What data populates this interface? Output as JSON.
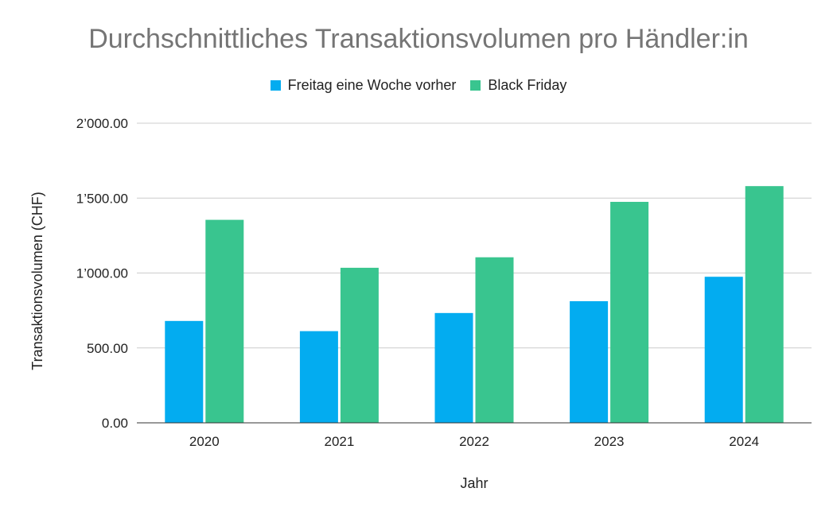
{
  "chart_data": {
    "type": "bar",
    "title": "Durchschnittliches Transaktionsvolumen pro Händler:in",
    "xlabel": "Jahr",
    "ylabel": "Transaktionsvolumen (CHF)",
    "categories": [
      "2020",
      "2021",
      "2022",
      "2023",
      "2024"
    ],
    "series": [
      {
        "name": "Freitag eine Woche vorher",
        "color": "#03acf0",
        "values": [
          680,
          612,
          733,
          812,
          975
        ]
      },
      {
        "name": "Black Friday",
        "color": "#39c58f",
        "values": [
          1355,
          1035,
          1105,
          1475,
          1580
        ]
      }
    ],
    "ylim": [
      0,
      2000
    ],
    "yticks": [
      0,
      500,
      1000,
      1500,
      2000
    ],
    "ytick_labels": [
      "0.00",
      "500.00",
      "1’000.00",
      "1’500.00",
      "2’000.00"
    ],
    "grid": true,
    "legend_position": "top"
  }
}
